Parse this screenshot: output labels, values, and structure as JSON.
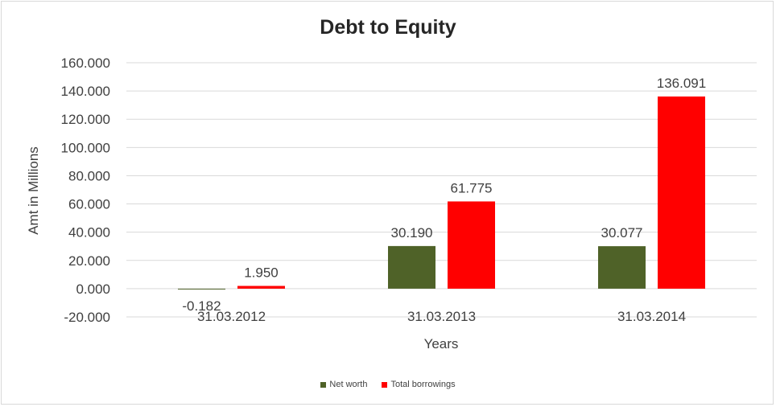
{
  "chart_data": {
    "type": "bar",
    "title": "Debt to Equity",
    "xlabel": "Years",
    "ylabel": "Amt in Millions",
    "categories": [
      "31.03.2012",
      "31.03.2013",
      "31.03.2014"
    ],
    "series": [
      {
        "name": "Net worth",
        "values": [
          -0.182,
          30.19,
          30.077
        ],
        "labels": [
          "-0.182",
          "30.190",
          "30.077"
        ],
        "color": "#4f6228"
      },
      {
        "name": "Total borrowings",
        "values": [
          1.95,
          61.775,
          136.091
        ],
        "labels": [
          "1.950",
          "61.775",
          "136.091"
        ],
        "color": "#ff0000"
      }
    ],
    "ylim": [
      -20,
      160
    ],
    "yticks": [
      -20,
      0,
      20,
      40,
      60,
      80,
      100,
      120,
      140,
      160
    ],
    "ytick_labels": [
      "-20.000",
      "0.000",
      "20.000",
      "40.000",
      "60.000",
      "80.000",
      "100.000",
      "120.000",
      "140.000",
      "160.000"
    ],
    "grid": true,
    "legend_position": "bottom"
  }
}
